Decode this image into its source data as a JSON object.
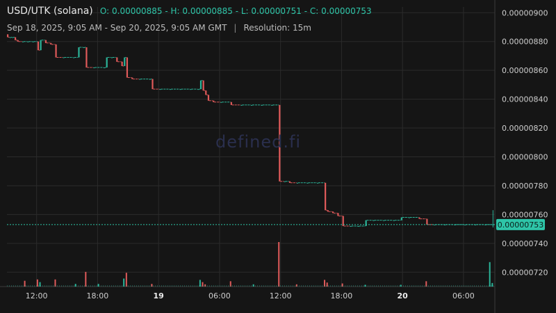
{
  "header": {
    "symbol": "USD/UTK (solana)",
    "ohlc": "O: 0.00000885 - H: 0.00000885 - L: 0.00000751 - C: 0.00000753",
    "range": "Sep 18, 2025, 9:05 AM - Sep 20, 2025, 9:05 AM GMT",
    "separator": "|",
    "resolution": "Resolution: 15m"
  },
  "watermark": "defined.fi",
  "colors": {
    "up": "#2bb59a",
    "down": "#e05a5a",
    "grid": "#2b2b2b",
    "last_price": "#2ec5a8"
  },
  "chart_data": {
    "type": "candlestick",
    "y_axis": {
      "ticks": [
        "0.00000900",
        "0.00000880",
        "0.00000860",
        "0.00000840",
        "0.00000820",
        "0.00000800",
        "0.00000780",
        "0.00000760",
        "0.00000740",
        "0.00000720"
      ],
      "range": [
        7.1e-06,
        9.04e-06
      ]
    },
    "x_axis": {
      "range_hours": [
        0,
        48
      ],
      "ticks": [
        {
          "t": 2.917,
          "label": "12:00",
          "bold": false
        },
        {
          "t": 8.917,
          "label": "18:00",
          "bold": false
        },
        {
          "t": 14.917,
          "label": "19",
          "bold": true
        },
        {
          "t": 20.917,
          "label": "06:00",
          "bold": false
        },
        {
          "t": 26.917,
          "label": "12:00",
          "bold": false
        },
        {
          "t": 32.917,
          "label": "18:00",
          "bold": false
        },
        {
          "t": 38.917,
          "label": "20",
          "bold": true
        },
        {
          "t": 44.917,
          "label": "06:00",
          "bold": false
        }
      ]
    },
    "last_price": "0.00000753",
    "candles": [
      {
        "t": 0.0,
        "o": 8.85e-06,
        "h": 8.85e-06,
        "l": 8.83e-06,
        "c": 8.83e-06
      },
      {
        "t": 0.25,
        "o": 8.83e-06,
        "h": 8.83e-06,
        "l": 8.83e-06,
        "c": 8.83e-06
      },
      {
        "t": 0.5,
        "o": 8.83e-06,
        "h": 8.83e-06,
        "l": 8.83e-06,
        "c": 8.83e-06
      },
      {
        "t": 0.75,
        "o": 8.83e-06,
        "h": 8.83e-06,
        "l": 8.81e-06,
        "c": 8.81e-06
      },
      {
        "t": 1.0,
        "o": 8.81e-06,
        "h": 8.81e-06,
        "l": 8.8e-06,
        "c": 8.8e-06
      },
      {
        "t": 1.5,
        "o": 8.8e-06,
        "h": 8.8e-06,
        "l": 8.8e-06,
        "c": 8.8e-06
      },
      {
        "t": 2.0,
        "o": 8.8e-06,
        "h": 8.8e-06,
        "l": 8.8e-06,
        "c": 8.8e-06
      },
      {
        "t": 2.5,
        "o": 8.8e-06,
        "h": 8.8e-06,
        "l": 8.8e-06,
        "c": 8.8e-06
      },
      {
        "t": 3.0,
        "o": 8.8e-06,
        "h": 8.8e-06,
        "l": 8.74e-06,
        "c": 8.74e-06
      },
      {
        "t": 3.25,
        "o": 8.74e-06,
        "h": 8.81e-06,
        "l": 8.74e-06,
        "c": 8.81e-06
      },
      {
        "t": 3.75,
        "o": 8.81e-06,
        "h": 8.81e-06,
        "l": 8.79e-06,
        "c": 8.79e-06
      },
      {
        "t": 4.25,
        "o": 8.79e-06,
        "h": 8.79e-06,
        "l": 8.78e-06,
        "c": 8.78e-06
      },
      {
        "t": 4.75,
        "o": 8.78e-06,
        "h": 8.78e-06,
        "l": 8.69e-06,
        "c": 8.69e-06
      },
      {
        "t": 5.5,
        "o": 8.69e-06,
        "h": 8.69e-06,
        "l": 8.69e-06,
        "c": 8.69e-06
      },
      {
        "t": 6.5,
        "o": 8.69e-06,
        "h": 8.69e-06,
        "l": 8.69e-06,
        "c": 8.69e-06
      },
      {
        "t": 7.0,
        "o": 8.69e-06,
        "h": 8.76e-06,
        "l": 8.69e-06,
        "c": 8.76e-06
      },
      {
        "t": 7.5,
        "o": 8.76e-06,
        "h": 8.76e-06,
        "l": 8.76e-06,
        "c": 8.76e-06
      },
      {
        "t": 7.75,
        "o": 8.76e-06,
        "h": 8.76e-06,
        "l": 8.62e-06,
        "c": 8.62e-06
      },
      {
        "t": 8.5,
        "o": 8.62e-06,
        "h": 8.62e-06,
        "l": 8.62e-06,
        "c": 8.62e-06
      },
      {
        "t": 9.5,
        "o": 8.62e-06,
        "h": 8.62e-06,
        "l": 8.62e-06,
        "c": 8.62e-06
      },
      {
        "t": 9.75,
        "o": 8.62e-06,
        "h": 8.69e-06,
        "l": 8.62e-06,
        "c": 8.69e-06
      },
      {
        "t": 10.25,
        "o": 8.69e-06,
        "h": 8.69e-06,
        "l": 8.69e-06,
        "c": 8.69e-06
      },
      {
        "t": 10.75,
        "o": 8.69e-06,
        "h": 8.69e-06,
        "l": 8.66e-06,
        "c": 8.66e-06
      },
      {
        "t": 11.25,
        "o": 8.66e-06,
        "h": 8.66e-06,
        "l": 8.63e-06,
        "c": 8.63e-06
      },
      {
        "t": 11.5,
        "o": 8.63e-06,
        "h": 8.69e-06,
        "l": 8.63e-06,
        "c": 8.69e-06
      },
      {
        "t": 11.75,
        "o": 8.69e-06,
        "h": 8.69e-06,
        "l": 8.55e-06,
        "c": 8.55e-06
      },
      {
        "t": 12.25,
        "o": 8.55e-06,
        "h": 8.55e-06,
        "l": 8.54e-06,
        "c": 8.54e-06
      },
      {
        "t": 13.0,
        "o": 8.54e-06,
        "h": 8.54e-06,
        "l": 8.54e-06,
        "c": 8.54e-06
      },
      {
        "t": 14.0,
        "o": 8.54e-06,
        "h": 8.54e-06,
        "l": 8.54e-06,
        "c": 8.54e-06
      },
      {
        "t": 14.25,
        "o": 8.54e-06,
        "h": 8.54e-06,
        "l": 8.47e-06,
        "c": 8.47e-06
      },
      {
        "t": 15.0,
        "o": 8.47e-06,
        "h": 8.47e-06,
        "l": 8.47e-06,
        "c": 8.47e-06
      },
      {
        "t": 16.0,
        "o": 8.47e-06,
        "h": 8.47e-06,
        "l": 8.47e-06,
        "c": 8.47e-06
      },
      {
        "t": 17.0,
        "o": 8.47e-06,
        "h": 8.47e-06,
        "l": 8.47e-06,
        "c": 8.47e-06
      },
      {
        "t": 18.0,
        "o": 8.47e-06,
        "h": 8.47e-06,
        "l": 8.47e-06,
        "c": 8.47e-06
      },
      {
        "t": 18.75,
        "o": 8.47e-06,
        "h": 8.47e-06,
        "l": 8.47e-06,
        "c": 8.47e-06
      },
      {
        "t": 19.0,
        "o": 8.47e-06,
        "h": 8.53e-06,
        "l": 8.47e-06,
        "c": 8.53e-06
      },
      {
        "t": 19.25,
        "o": 8.53e-06,
        "h": 8.53e-06,
        "l": 8.46e-06,
        "c": 8.46e-06
      },
      {
        "t": 19.5,
        "o": 8.46e-06,
        "h": 8.46e-06,
        "l": 8.43e-06,
        "c": 8.43e-06
      },
      {
        "t": 19.75,
        "o": 8.43e-06,
        "h": 8.43e-06,
        "l": 8.39e-06,
        "c": 8.39e-06
      },
      {
        "t": 20.25,
        "o": 8.39e-06,
        "h": 8.39e-06,
        "l": 8.38e-06,
        "c": 8.38e-06
      },
      {
        "t": 21.0,
        "o": 8.38e-06,
        "h": 8.38e-06,
        "l": 8.38e-06,
        "c": 8.38e-06
      },
      {
        "t": 22.0,
        "o": 8.38e-06,
        "h": 8.38e-06,
        "l": 8.36e-06,
        "c": 8.36e-06
      },
      {
        "t": 23.0,
        "o": 8.36e-06,
        "h": 8.36e-06,
        "l": 8.36e-06,
        "c": 8.36e-06
      },
      {
        "t": 24.0,
        "o": 8.36e-06,
        "h": 8.36e-06,
        "l": 8.36e-06,
        "c": 8.36e-06
      },
      {
        "t": 25.0,
        "o": 8.36e-06,
        "h": 8.36e-06,
        "l": 8.36e-06,
        "c": 8.36e-06
      },
      {
        "t": 26.0,
        "o": 8.36e-06,
        "h": 8.36e-06,
        "l": 8.36e-06,
        "c": 8.36e-06
      },
      {
        "t": 26.75,
        "o": 8.36e-06,
        "h": 8.36e-06,
        "l": 7.83e-06,
        "c": 7.83e-06
      },
      {
        "t": 27.25,
        "o": 7.83e-06,
        "h": 7.83e-06,
        "l": 7.83e-06,
        "c": 7.83e-06
      },
      {
        "t": 27.75,
        "o": 7.83e-06,
        "h": 7.83e-06,
        "l": 7.82e-06,
        "c": 7.82e-06
      },
      {
        "t": 28.5,
        "o": 7.82e-06,
        "h": 7.82e-06,
        "l": 7.82e-06,
        "c": 7.82e-06
      },
      {
        "t": 29.5,
        "o": 7.82e-06,
        "h": 7.82e-06,
        "l": 7.82e-06,
        "c": 7.82e-06
      },
      {
        "t": 30.5,
        "o": 7.82e-06,
        "h": 7.82e-06,
        "l": 7.82e-06,
        "c": 7.82e-06
      },
      {
        "t": 31.25,
        "o": 7.82e-06,
        "h": 7.82e-06,
        "l": 7.63e-06,
        "c": 7.63e-06
      },
      {
        "t": 31.5,
        "o": 7.63e-06,
        "h": 7.63e-06,
        "l": 7.62e-06,
        "c": 7.62e-06
      },
      {
        "t": 32.0,
        "o": 7.62e-06,
        "h": 7.62e-06,
        "l": 7.61e-06,
        "c": 7.61e-06
      },
      {
        "t": 32.5,
        "o": 7.61e-06,
        "h": 7.61e-06,
        "l": 7.59e-06,
        "c": 7.59e-06
      },
      {
        "t": 33.0,
        "o": 7.59e-06,
        "h": 7.59e-06,
        "l": 7.52e-06,
        "c": 7.52e-06
      },
      {
        "t": 33.75,
        "o": 7.52e-06,
        "h": 7.52e-06,
        "l": 7.52e-06,
        "c": 7.52e-06
      },
      {
        "t": 34.5,
        "o": 7.52e-06,
        "h": 7.52e-06,
        "l": 7.52e-06,
        "c": 7.52e-06
      },
      {
        "t": 35.25,
        "o": 7.52e-06,
        "h": 7.56e-06,
        "l": 7.52e-06,
        "c": 7.56e-06
      },
      {
        "t": 36.0,
        "o": 7.56e-06,
        "h": 7.56e-06,
        "l": 7.56e-06,
        "c": 7.56e-06
      },
      {
        "t": 37.0,
        "o": 7.56e-06,
        "h": 7.56e-06,
        "l": 7.56e-06,
        "c": 7.56e-06
      },
      {
        "t": 38.0,
        "o": 7.56e-06,
        "h": 7.56e-06,
        "l": 7.56e-06,
        "c": 7.56e-06
      },
      {
        "t": 38.75,
        "o": 7.56e-06,
        "h": 7.58e-06,
        "l": 7.56e-06,
        "c": 7.58e-06
      },
      {
        "t": 39.5,
        "o": 7.58e-06,
        "h": 7.58e-06,
        "l": 7.58e-06,
        "c": 7.58e-06
      },
      {
        "t": 40.5,
        "o": 7.58e-06,
        "h": 7.58e-06,
        "l": 7.57e-06,
        "c": 7.57e-06
      },
      {
        "t": 41.25,
        "o": 7.57e-06,
        "h": 7.57e-06,
        "l": 7.53e-06,
        "c": 7.53e-06
      },
      {
        "t": 42.0,
        "o": 7.53e-06,
        "h": 7.53e-06,
        "l": 7.53e-06,
        "c": 7.53e-06
      },
      {
        "t": 43.0,
        "o": 7.53e-06,
        "h": 7.53e-06,
        "l": 7.53e-06,
        "c": 7.53e-06
      },
      {
        "t": 44.0,
        "o": 7.53e-06,
        "h": 7.53e-06,
        "l": 7.53e-06,
        "c": 7.53e-06
      },
      {
        "t": 45.0,
        "o": 7.53e-06,
        "h": 7.53e-06,
        "l": 7.53e-06,
        "c": 7.53e-06
      },
      {
        "t": 46.0,
        "o": 7.53e-06,
        "h": 7.53e-06,
        "l": 7.53e-06,
        "c": 7.53e-06
      },
      {
        "t": 47.0,
        "o": 7.53e-06,
        "h": 7.53e-06,
        "l": 7.53e-06,
        "c": 7.53e-06
      },
      {
        "t": 47.75,
        "o": 7.53e-06,
        "h": 7.63e-06,
        "l": 7.51e-06,
        "c": 7.53e-06
      }
    ],
    "volume": {
      "max": 100,
      "bars": [
        {
          "t": 1.75,
          "v": 13,
          "up": false
        },
        {
          "t": 3.0,
          "v": 16,
          "up": false
        },
        {
          "t": 3.25,
          "v": 10,
          "up": true
        },
        {
          "t": 4.75,
          "v": 16,
          "up": false
        },
        {
          "t": 6.75,
          "v": 6,
          "up": true
        },
        {
          "t": 7.75,
          "v": 33,
          "up": false
        },
        {
          "t": 9.0,
          "v": 6,
          "up": true
        },
        {
          "t": 11.5,
          "v": 18,
          "up": true
        },
        {
          "t": 11.75,
          "v": 31,
          "up": false
        },
        {
          "t": 14.25,
          "v": 6,
          "up": false
        },
        {
          "t": 19.0,
          "v": 15,
          "up": true
        },
        {
          "t": 19.25,
          "v": 10,
          "up": false
        },
        {
          "t": 19.5,
          "v": 5,
          "up": false
        },
        {
          "t": 22.0,
          "v": 12,
          "up": false
        },
        {
          "t": 24.25,
          "v": 5,
          "up": true
        },
        {
          "t": 26.75,
          "v": 100,
          "up": false
        },
        {
          "t": 28.5,
          "v": 5,
          "up": false
        },
        {
          "t": 31.25,
          "v": 15,
          "up": false
        },
        {
          "t": 31.5,
          "v": 9,
          "up": false
        },
        {
          "t": 33.0,
          "v": 7,
          "up": false
        },
        {
          "t": 35.25,
          "v": 4,
          "up": true
        },
        {
          "t": 38.75,
          "v": 4,
          "up": true
        },
        {
          "t": 41.25,
          "v": 12,
          "up": false
        },
        {
          "t": 47.5,
          "v": 55,
          "up": true
        },
        {
          "t": 47.75,
          "v": 8,
          "up": true
        }
      ]
    },
    "grid": true
  }
}
